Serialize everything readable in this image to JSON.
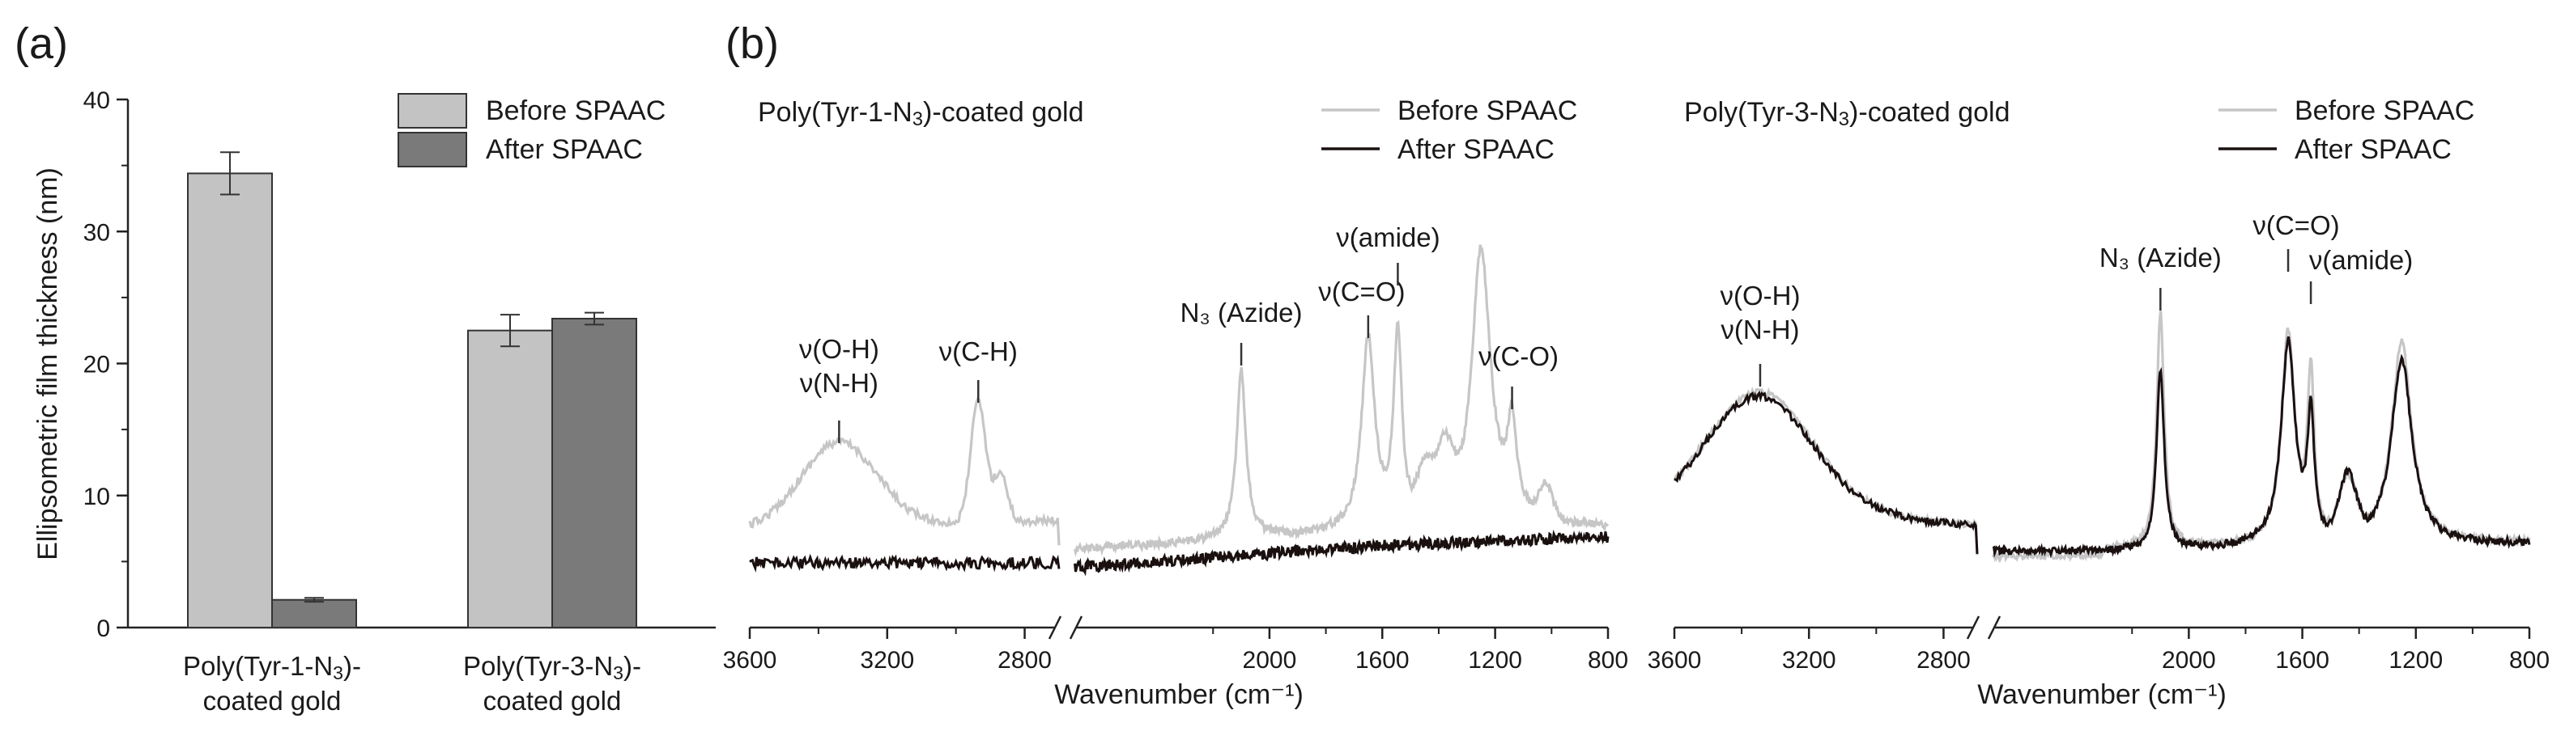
{
  "chart_data": [
    {
      "type": "bar",
      "panel_label": "(a)",
      "ylabel": "Ellipsometric film thickness (nm)",
      "ylim": [
        0,
        40
      ],
      "yticks": [
        "0",
        "10",
        "20",
        "30",
        "40"
      ],
      "categories": [
        {
          "line1": "Poly(Tyr-1-N",
          "sub": "3",
          "line1_end": ")-",
          "line2": "coated gold"
        },
        {
          "line1": "Poly(Tyr-3-N",
          "sub": "3",
          "line1_end": ")-",
          "line2": "coated gold"
        }
      ],
      "series": [
        {
          "name": "Before SPAAC",
          "color": "#c3c3c3",
          "values": [
            34.4,
            22.5
          ],
          "errors": [
            1.6,
            1.2
          ]
        },
        {
          "name": "After SPAAC",
          "color": "#7a7a7a",
          "values": [
            2.1,
            23.4
          ],
          "errors": [
            0.15,
            0.45
          ]
        }
      ]
    },
    {
      "type": "line",
      "panel_label": "(b)",
      "title_main": "Poly(Tyr-1-N",
      "title_sub": "3",
      "title_end": ")-coated gold",
      "xlabel": "Wavenumber (cm⁻¹)",
      "xticks": [
        "3600",
        "3200",
        "2800",
        "2000",
        "1600",
        "1200",
        "800"
      ],
      "axis_break": true,
      "series": [
        {
          "name": "Before SPAAC",
          "color": "#c6c6c6"
        },
        {
          "name": "After SPAAC",
          "color": "#1a1010"
        }
      ],
      "annotations": [
        "ν(O-H)",
        "ν(N-H)",
        "ν(C-H)",
        "N₃ (Azide)",
        "ν(C=O)",
        "ν(amide)",
        "ν(C-O)"
      ],
      "peaks_cm1": [
        3350,
        2930,
        2100,
        1650,
        1545,
        1240,
        1140
      ]
    },
    {
      "type": "line",
      "title_main": "Poly(Tyr-3-N",
      "title_sub": "3",
      "title_end": ")-coated gold",
      "xlabel": "Wavenumber (cm⁻¹)",
      "xticks": [
        "3600",
        "3200",
        "2800",
        "2000",
        "1600",
        "1200",
        "800"
      ],
      "axis_break": true,
      "series": [
        {
          "name": "Before SPAAC",
          "color": "#c6c6c6"
        },
        {
          "name": "After SPAAC",
          "color": "#1a1010"
        }
      ],
      "annotations": [
        "ν(O-H)",
        "ν(N-H)",
        "N₃ (Azide)",
        "ν(C=O)",
        "ν(amide)"
      ],
      "peaks_cm1": [
        3350,
        2100,
        1650,
        1545,
        1240
      ]
    }
  ]
}
